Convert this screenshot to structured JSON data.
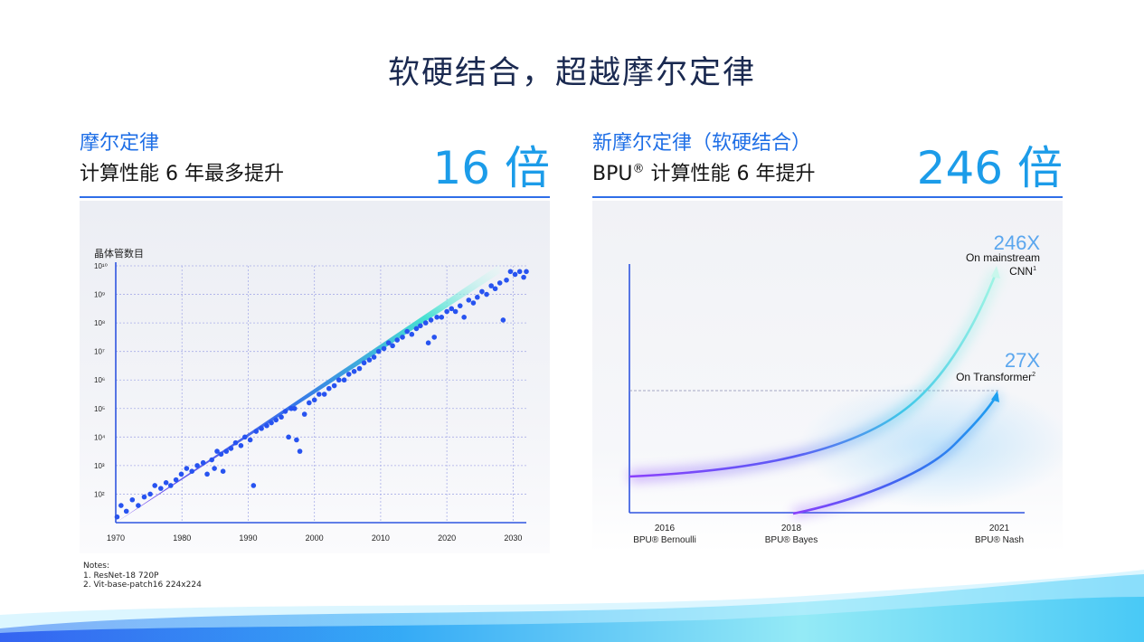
{
  "title": "软硬结合，超越摩尔定律",
  "left_panel": {
    "subtitle": "摩尔定律",
    "line2": "计算性能 6 年最多提升",
    "big": "16 倍"
  },
  "right_panel": {
    "subtitle": "新摩尔定律（软硬结合）",
    "line2_prefix": "BPU",
    "line2_sup": "®",
    "line2_suffix": " 计算性能 6 年提升",
    "big": "246 倍"
  },
  "notes": {
    "heading": "Notes:",
    "items": [
      "1. ResNet-18 720P",
      "2. Vit-base-patch16 224x224"
    ]
  },
  "chart_data": [
    {
      "type": "scatter",
      "ylabel": "晶体管数目",
      "yscale": "log",
      "ylim": [
        10,
        10000000000
      ],
      "xlim": [
        1970,
        2032
      ],
      "x_ticks": [
        1970,
        1980,
        1990,
        2000,
        2010,
        2020,
        2030
      ],
      "y_ticks": [
        {
          "label": "10²",
          "value": 100
        },
        {
          "label": "10³",
          "value": 1000
        },
        {
          "label": "10⁴",
          "value": 10000
        },
        {
          "label": "10⁵",
          "value": 100000
        },
        {
          "label": "10⁶",
          "value": 1000000
        },
        {
          "label": "10⁷",
          "value": 10000000
        },
        {
          "label": "10⁸",
          "value": 100000000
        },
        {
          "label": "10⁹",
          "value": 1000000000
        },
        {
          "label": "10¹⁰",
          "value": 10000000000
        }
      ],
      "trend": {
        "x": [
          1970,
          2028
        ],
        "y_log10": [
          1.0,
          9.9
        ]
      },
      "points_log10": [
        [
          1970.2,
          1.2
        ],
        [
          1970.8,
          1.6
        ],
        [
          1971.6,
          1.4
        ],
        [
          1972.5,
          1.8
        ],
        [
          1973.4,
          1.6
        ],
        [
          1974.3,
          1.9
        ],
        [
          1975.2,
          2.0
        ],
        [
          1975.9,
          2.3
        ],
        [
          1976.8,
          2.2
        ],
        [
          1977.6,
          2.4
        ],
        [
          1978.3,
          2.3
        ],
        [
          1979.1,
          2.5
        ],
        [
          1979.9,
          2.7
        ],
        [
          1980.7,
          2.9
        ],
        [
          1981.5,
          2.8
        ],
        [
          1982.3,
          3.0
        ],
        [
          1983.2,
          3.1
        ],
        [
          1983.8,
          2.7
        ],
        [
          1984.5,
          3.2
        ],
        [
          1984.9,
          2.9
        ],
        [
          1985.3,
          3.5
        ],
        [
          1985.9,
          3.4
        ],
        [
          1986.2,
          2.8
        ],
        [
          1986.7,
          3.5
        ],
        [
          1987.4,
          3.6
        ],
        [
          1988.1,
          3.8
        ],
        [
          1988.9,
          3.7
        ],
        [
          1989.5,
          4.0
        ],
        [
          1990.3,
          3.9
        ],
        [
          1990.8,
          2.3
        ],
        [
          1991.2,
          4.2
        ],
        [
          1992.0,
          4.3
        ],
        [
          1992.8,
          4.4
        ],
        [
          1993.5,
          4.5
        ],
        [
          1994.2,
          4.6
        ],
        [
          1995.0,
          4.7
        ],
        [
          1995.6,
          4.9
        ],
        [
          1996.1,
          4.0
        ],
        [
          1996.5,
          5.0
        ],
        [
          1997.0,
          5.0
        ],
        [
          1997.3,
          3.9
        ],
        [
          1997.8,
          3.5
        ],
        [
          1998.5,
          4.8
        ],
        [
          1999.2,
          5.2
        ],
        [
          2000.0,
          5.3
        ],
        [
          2000.7,
          5.5
        ],
        [
          2001.5,
          5.5
        ],
        [
          2002.2,
          5.7
        ],
        [
          2003.0,
          5.8
        ],
        [
          2003.7,
          6.0
        ],
        [
          2004.5,
          6.0
        ],
        [
          2005.2,
          6.2
        ],
        [
          2006.0,
          6.3
        ],
        [
          2006.8,
          6.4
        ],
        [
          2007.5,
          6.6
        ],
        [
          2008.3,
          6.7
        ],
        [
          2009.0,
          6.8
        ],
        [
          2009.7,
          7.0
        ],
        [
          2010.5,
          7.1
        ],
        [
          2011.2,
          7.3
        ],
        [
          2011.8,
          7.2
        ],
        [
          2012.5,
          7.4
        ],
        [
          2013.3,
          7.5
        ],
        [
          2014.0,
          7.7
        ],
        [
          2014.7,
          7.6
        ],
        [
          2015.4,
          7.8
        ],
        [
          2016.0,
          7.9
        ],
        [
          2016.8,
          8.0
        ],
        [
          2017.2,
          7.3
        ],
        [
          2017.6,
          8.1
        ],
        [
          2018.1,
          7.5
        ],
        [
          2018.5,
          8.2
        ],
        [
          2019.2,
          8.2
        ],
        [
          2020.0,
          8.4
        ],
        [
          2020.7,
          8.5
        ],
        [
          2021.3,
          8.4
        ],
        [
          2022.0,
          8.6
        ],
        [
          2022.6,
          8.2
        ],
        [
          2023.3,
          8.8
        ],
        [
          2024.0,
          8.7
        ],
        [
          2024.6,
          8.9
        ],
        [
          2025.3,
          9.1
        ],
        [
          2026.0,
          9.0
        ],
        [
          2026.7,
          9.3
        ],
        [
          2027.3,
          9.2
        ],
        [
          2028.0,
          9.4
        ],
        [
          2028.5,
          8.1
        ],
        [
          2029.0,
          9.5
        ],
        [
          2029.6,
          9.8
        ],
        [
          2030.3,
          9.7
        ],
        [
          2031.0,
          9.8
        ],
        [
          2031.6,
          9.6
        ],
        [
          2032.0,
          9.8
        ]
      ]
    },
    {
      "type": "line",
      "categories": [
        {
          "year": "2016",
          "name": "BPU® Bernoulli"
        },
        {
          "year": "2018",
          "name": "BPU® Bayes"
        },
        {
          "year": "2021",
          "name": "BPU® Nash"
        }
      ],
      "series": [
        {
          "name": "On mainstream CNN",
          "sup": "1",
          "end_label": "246X",
          "end_value": 246
        },
        {
          "name": "On Transformer",
          "sup": "2",
          "end_label": "27X",
          "end_value": 27
        }
      ],
      "colors": {
        "cnn_start": "#8a3ffc",
        "cnn_end": "#5ff0d5",
        "tf_start": "#8a3ffc",
        "tf_end": "#1fa0f0"
      }
    }
  ]
}
